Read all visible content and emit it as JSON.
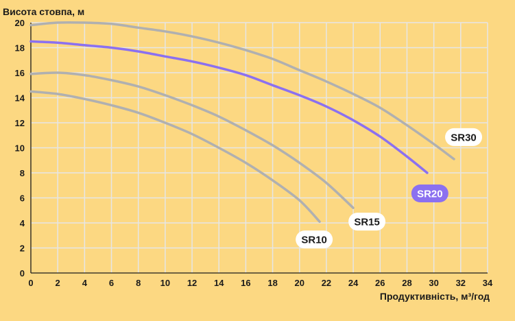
{
  "chart_data": {
    "type": "line",
    "title": "",
    "ylabel": "Висота стовпа, м",
    "xlabel": "Продуктивність, м³/год",
    "xlim": [
      0,
      34
    ],
    "ylim": [
      0,
      20
    ],
    "x_ticks": [
      "0",
      "2",
      "4",
      "6",
      "8",
      "10",
      "12",
      "14",
      "16",
      "18",
      "20",
      "22",
      "24",
      "26",
      "28",
      "30",
      "32",
      "34"
    ],
    "y_ticks": [
      "0",
      "2",
      "4",
      "6",
      "8",
      "10",
      "12",
      "14",
      "16",
      "18",
      "20"
    ],
    "grid": true,
    "series": [
      {
        "name": "SR10",
        "color": "#b0b0b0",
        "points": [
          [
            0,
            14.5
          ],
          [
            2,
            14.3
          ],
          [
            4,
            13.9
          ],
          [
            6,
            13.4
          ],
          [
            8,
            12.8
          ],
          [
            10,
            12.0
          ],
          [
            12,
            11.1
          ],
          [
            14,
            10.0
          ],
          [
            16,
            8.8
          ],
          [
            18,
            7.4
          ],
          [
            20,
            5.8
          ],
          [
            21.5,
            4.1
          ]
        ]
      },
      {
        "name": "SR15",
        "color": "#b0b0b0",
        "points": [
          [
            0,
            15.9
          ],
          [
            2,
            16.0
          ],
          [
            4,
            15.8
          ],
          [
            6,
            15.4
          ],
          [
            8,
            14.9
          ],
          [
            10,
            14.2
          ],
          [
            12,
            13.4
          ],
          [
            14,
            12.5
          ],
          [
            16,
            11.4
          ],
          [
            18,
            10.2
          ],
          [
            20,
            8.8
          ],
          [
            22,
            7.2
          ],
          [
            24,
            5.2
          ]
        ]
      },
      {
        "name": "SR20",
        "color": "#8b70f0",
        "points": [
          [
            0,
            18.5
          ],
          [
            2,
            18.4
          ],
          [
            4,
            18.2
          ],
          [
            6,
            18.0
          ],
          [
            8,
            17.7
          ],
          [
            10,
            17.3
          ],
          [
            12,
            16.9
          ],
          [
            14,
            16.4
          ],
          [
            16,
            15.8
          ],
          [
            18,
            15.0
          ],
          [
            20,
            14.2
          ],
          [
            22,
            13.3
          ],
          [
            24,
            12.2
          ],
          [
            26,
            10.9
          ],
          [
            28,
            9.3
          ],
          [
            29.5,
            8.0
          ]
        ]
      },
      {
        "name": "SR30",
        "color": "#b0b0b0",
        "points": [
          [
            0,
            19.8
          ],
          [
            2,
            20.0
          ],
          [
            4,
            20.0
          ],
          [
            6,
            19.9
          ],
          [
            8,
            19.6
          ],
          [
            10,
            19.3
          ],
          [
            12,
            18.9
          ],
          [
            14,
            18.4
          ],
          [
            16,
            17.8
          ],
          [
            18,
            17.1
          ],
          [
            20,
            16.2
          ],
          [
            22,
            15.3
          ],
          [
            24,
            14.3
          ],
          [
            26,
            13.2
          ],
          [
            28,
            11.8
          ],
          [
            30,
            10.3
          ],
          [
            31.5,
            9.1
          ]
        ]
      }
    ],
    "label_styles": {
      "SR10": {
        "bg": "#ffffff",
        "fg": "#1a1a1a"
      },
      "SR15": {
        "bg": "#ffffff",
        "fg": "#1a1a1a"
      },
      "SR20": {
        "bg": "#8b70f0",
        "fg": "#ffffff"
      },
      "SR30": {
        "bg": "#ffffff",
        "fg": "#1a1a1a"
      }
    },
    "colors": {
      "background": "#fcd882",
      "grid": "#e6e6e6",
      "axis": "#1a1a1a"
    }
  }
}
